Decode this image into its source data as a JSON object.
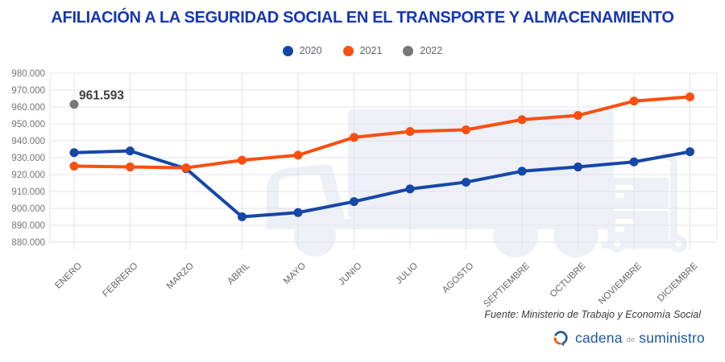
{
  "title": "AFILIACIÓN A LA SEGURIDAD SOCIAL EN EL TRANSPORTE Y ALMACENAMIENTO",
  "chart_data": {
    "type": "line",
    "categories": [
      "ENERO",
      "FEBRERO",
      "MARZO",
      "ABRIL",
      "MAYO",
      "JUNIO",
      "JULIO",
      "AGOSTO",
      "SEPTIEMBRE",
      "OCTUBRE",
      "NOVIEMBRE",
      "DICIEMBRE"
    ],
    "series": [
      {
        "name": "2020",
        "color": "#1547A9",
        "values": [
          933000,
          934000,
          923500,
          895000,
          897500,
          904000,
          911500,
          915500,
          922000,
          924500,
          927500,
          933500
        ]
      },
      {
        "name": "2021",
        "color": "#FA4F10",
        "values": [
          925000,
          924500,
          924000,
          928500,
          931500,
          942000,
          945500,
          946500,
          952500,
          955000,
          963500,
          966000
        ]
      },
      {
        "name": "2022",
        "color": "#777777",
        "values": [
          961593,
          null,
          null,
          null,
          null,
          null,
          null,
          null,
          null,
          null,
          null,
          null
        ]
      }
    ],
    "annotation": {
      "text": "961.593",
      "series": "2022",
      "category": "ENERO"
    },
    "ylim": [
      880000,
      980000
    ],
    "ytick_step": 10000,
    "y_tick_labels": [
      "880.000",
      "890.000",
      "900.000",
      "910.000",
      "920.000",
      "930.000",
      "940.000",
      "950.000",
      "960.000",
      "970.000",
      "980.000"
    ],
    "grid": true,
    "legend_position": "top",
    "xlabel": "",
    "ylabel": ""
  },
  "source_note": "Fuente: Ministerio de Trabajo y Economía Social",
  "brand": {
    "name_part1": "cadena",
    "name_part2": "de",
    "name_part3": "suministro"
  },
  "icons": {
    "brand_icon": "circular-arrows-icon",
    "watermark": "truck-and-hand-truck-illustration"
  },
  "colors": {
    "title": "#1737B0",
    "grid": "#E3E3E3",
    "y_axis_label": "#757575",
    "x_axis_label": "#666666",
    "annotation": "#3F3F3F",
    "watermark": "#EDF0F7",
    "brand_blue": "#1D56A7",
    "brand_orange": "#E7590F",
    "brand_gray": "#9AA0A6",
    "source_text": "#3A3A3A"
  }
}
